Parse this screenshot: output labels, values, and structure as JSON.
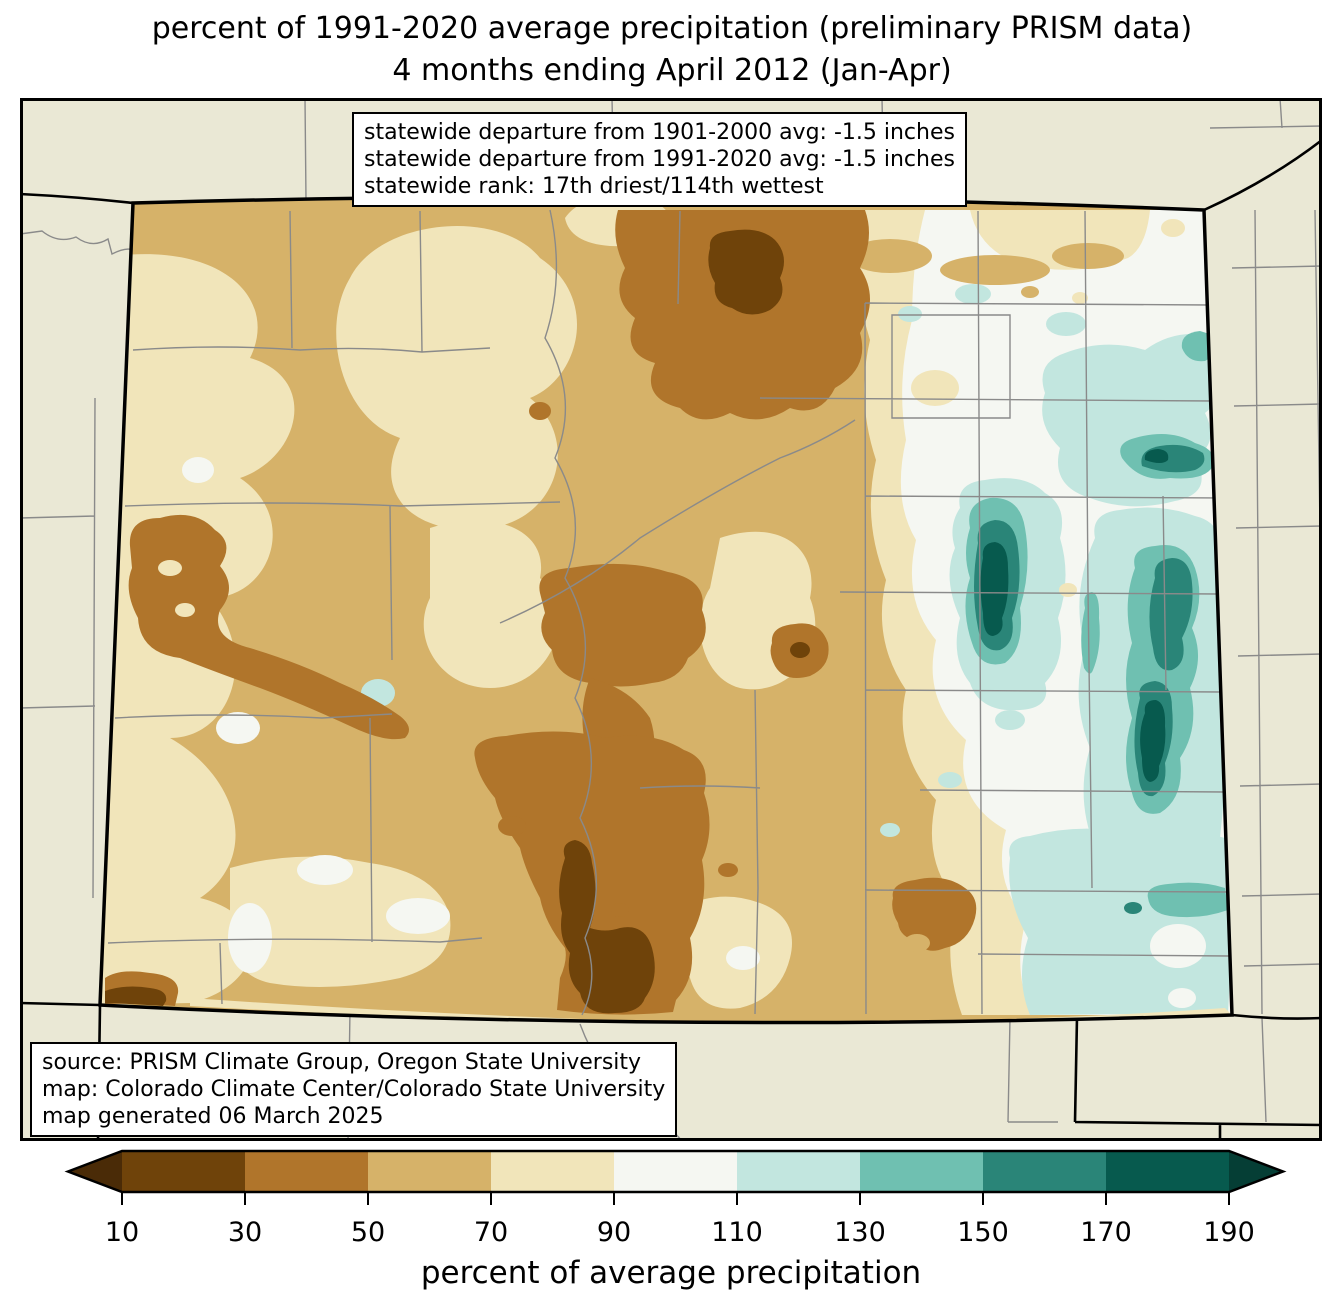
{
  "title": {
    "line1": "percent of 1991-2020 average precipitation (preliminary PRISM data)",
    "line2": "4 months ending April 2012 (Jan-Apr)"
  },
  "stats_box": {
    "line1": "statewide departure from 1901-2000 avg: -1.5 inches",
    "line2": "statewide departure from 1991-2020 avg: -1.5 inches",
    "line3": "statewide rank: 17th driest/114th wettest"
  },
  "source_box": {
    "line1": "source: PRISM Climate Group, Oregon State University",
    "line2": "map: Colorado Climate Center/Colorado State University",
    "line3": "map generated 06 March 2025"
  },
  "colorbar": {
    "label": "percent of average precipitation",
    "ticks": [
      "10",
      "30",
      "50",
      "70",
      "90",
      "110",
      "130",
      "150",
      "170",
      "190"
    ],
    "segment_colors": [
      "#6f430a",
      "#b0752b",
      "#d6b269",
      "#f1e5ba",
      "#f5f7f2",
      "#c2e6df",
      "#6fc0b1",
      "#2a8578",
      "#075a4e"
    ],
    "under_color": "#4a2b07",
    "over_color": "#053e35"
  },
  "palette": {
    "outside": "#eae8d5",
    "tan": "#d6b269",
    "cream": "#f1e5ba",
    "offwhite": "#f5f7f2",
    "paleteal": "#c2e6df",
    "teal": "#6fc0b1",
    "darkteal": "#2a8578",
    "deepteal": "#075a4e",
    "brown": "#b0752b",
    "darkbrown": "#6f430a",
    "county_line": "#8a8a8a",
    "state_line": "#000000"
  }
}
